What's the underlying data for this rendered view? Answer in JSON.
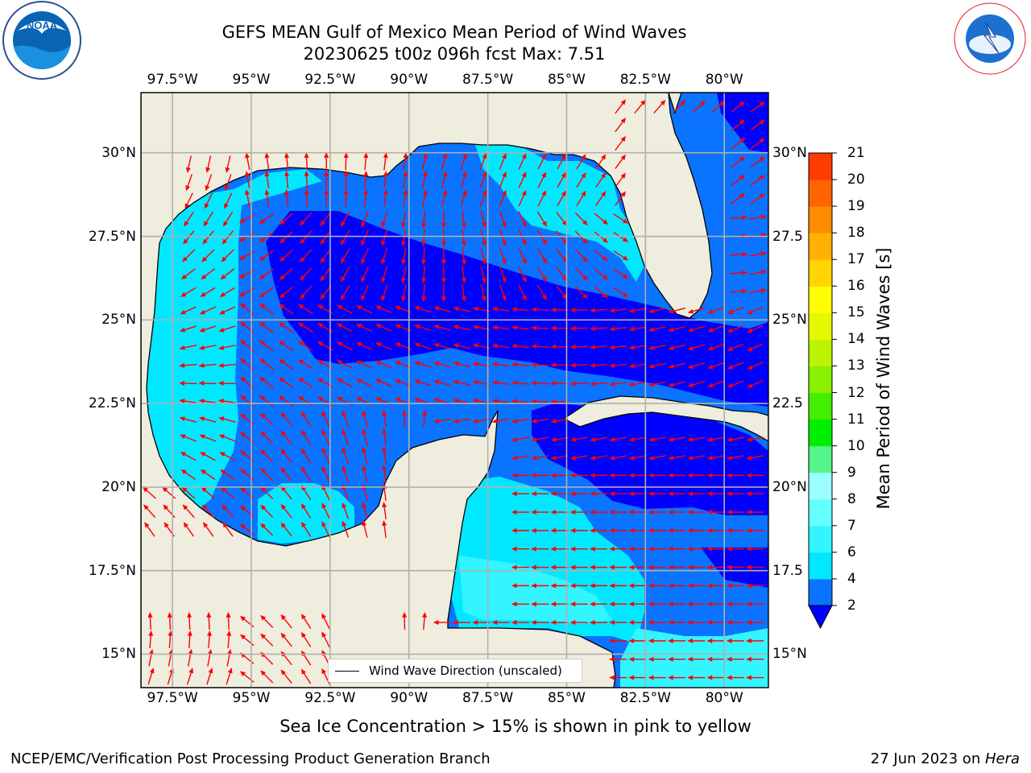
{
  "title": {
    "line1": "GEFS MEAN Gulf of Mexico Mean Period of Wind Waves",
    "line2": "20230625 t00z 096h fcst   Max: 7.51"
  },
  "map": {
    "region": "Gulf of Mexico",
    "extent": {
      "lon": [
        -98.5,
        -78.6
      ],
      "lat": [
        14.0,
        31.8
      ]
    },
    "lon_ticks": [
      "97.5°W",
      "95°W",
      "92.5°W",
      "90°W",
      "87.5°W",
      "85°W",
      "82.5°W",
      "80°W"
    ],
    "lat_ticks": [
      "30°N",
      "27.5°N",
      "25°N",
      "22.5°N",
      "20°N",
      "17.5°N",
      "15°N"
    ],
    "lat_ticks_right": [
      "30°N",
      "27.5",
      "25°N",
      "22.5",
      "20°N",
      "17.5",
      "15°N"
    ],
    "gridlines": true,
    "land_color": "#efedde",
    "arrow_color": "#ff0000"
  },
  "legend": {
    "label": "Wind Wave Direction (unscaled)",
    "placement": "lower-center"
  },
  "colorbar": {
    "label": "Mean Period of Wind Waves [s]",
    "levels": [
      2,
      4,
      6,
      7,
      8,
      9,
      10,
      11,
      12,
      13,
      14,
      15,
      16,
      17,
      18,
      19,
      20,
      21
    ],
    "tick_labels": [
      "2",
      "4",
      "6",
      "7",
      "8",
      "9",
      "10",
      "11",
      "12",
      "13",
      "14",
      "15",
      "16",
      "17",
      "18",
      "19",
      "20",
      "21"
    ],
    "colors": [
      "#0a73ff",
      "#00e8ff",
      "#33f5ff",
      "#66ffff",
      "#9cffff",
      "#55f58b",
      "#00ee00",
      "#44ee00",
      "#88f000",
      "#bbf300",
      "#e6f800",
      "#ffff00",
      "#ffd400",
      "#ffb000",
      "#ff8c00",
      "#ff6400",
      "#ff3c00",
      "#ff1400"
    ],
    "under_color": "#0000ff"
  },
  "chart_data": {
    "type": "heatmap",
    "variable": "Mean Period of Wind Waves",
    "units": "s",
    "max": 7.51,
    "regions": [
      {
        "area": "central Gulf (24-28°N, 85-93°W)",
        "period_range_s": "< 2"
      },
      {
        "area": "Straits of Florida / Caribbean near Cuba",
        "period_range_s": "< 2"
      },
      {
        "area": "western Gulf shelf off Texas/Mexico",
        "period_range_s": "4-6"
      },
      {
        "area": "northeastern Gulf shelf",
        "period_range_s": "4-6"
      },
      {
        "area": "western Caribbean off Belize/Honduras",
        "period_range_s": "4-6"
      },
      {
        "area": "most of remaining Gulf",
        "period_range_s": "2-4"
      }
    ]
  },
  "caption": "Sea Ice Concentration > 15% is shown in pink to yellow",
  "footer": {
    "left": "NCEP/EMC/Verification Post Processing Product Generation Branch",
    "date": "27 Jun 2023 on ",
    "machine": "Hera"
  },
  "logos": {
    "noaa": "NOAA",
    "nws": "NATIONAL WEATHER SERVICE"
  }
}
